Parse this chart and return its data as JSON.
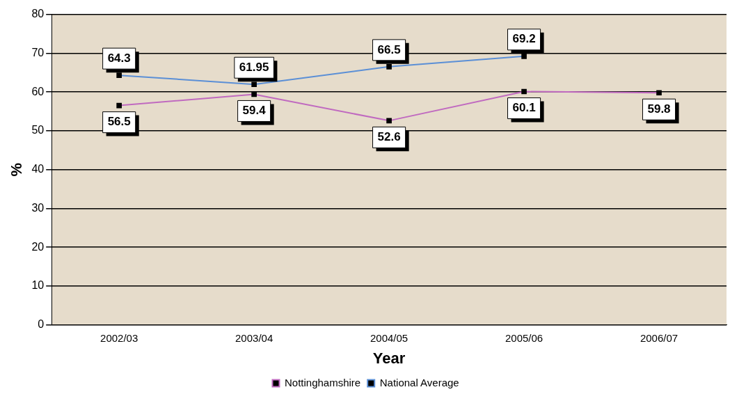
{
  "chart_data": {
    "type": "line",
    "xlabel": "Year",
    "ylabel": "%",
    "categories": [
      "2002/03",
      "2003/04",
      "2004/05",
      "2005/06",
      "2006/07"
    ],
    "series": [
      {
        "name": "Nottinghamshire",
        "color": "#c06ac0",
        "values": [
          56.5,
          59.4,
          52.6,
          60.1,
          59.8
        ]
      },
      {
        "name": "National Average",
        "color": "#5b8fd6",
        "values": [
          64.3,
          61.95,
          66.5,
          69.2,
          null
        ]
      }
    ],
    "ylim": [
      0,
      80
    ],
    "yticks": [
      0,
      10,
      20,
      30,
      40,
      50,
      60,
      70,
      80
    ],
    "grid": "y",
    "legend": "bottom",
    "marker": "square",
    "line_style": "solid",
    "data_labels": true
  }
}
